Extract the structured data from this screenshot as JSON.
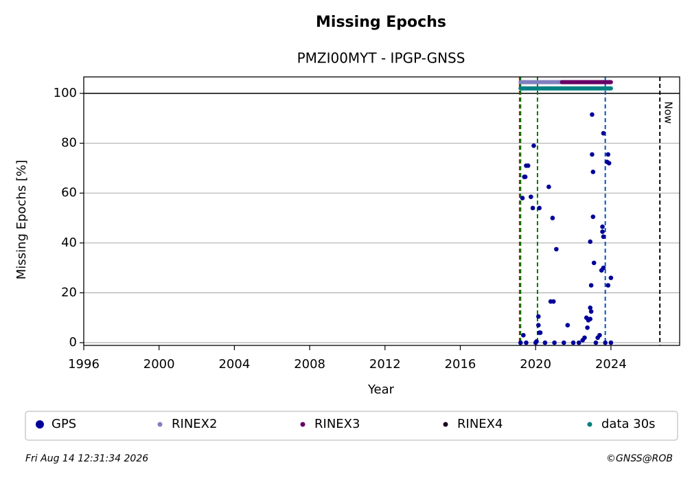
{
  "chart_data": {
    "type": "scatter",
    "title": "Missing Epochs",
    "subtitle": "PMZI00MYT - IPGP-GNSS",
    "x_label": "Year",
    "y_label": "Missing Epochs [%]",
    "xlim": [
      1996,
      2027.65
    ],
    "ylim": [
      -1.1,
      106.6
    ],
    "xticks": [
      1996,
      2000,
      2004,
      2008,
      2012,
      2016,
      2020,
      2024
    ],
    "yticks": [
      0,
      20,
      40,
      60,
      80,
      100
    ],
    "grid": true,
    "reference_line": 100,
    "series": [
      {
        "name": "GPS",
        "color": "#000099",
        "x": [
          2019.2,
          2019.3,
          2019.35,
          2019.4,
          2019.45,
          2019.5,
          2019.6,
          2019.75,
          2019.85,
          2019.9,
          2020.05,
          2020.2,
          2020.15,
          2020.15,
          2020.2,
          2020.25,
          2020.7,
          2020.8,
          2020.95,
          2020.9,
          2021.1,
          2021.7,
          2022.9,
          2022.95,
          2023.0,
          2023.0,
          2023.05,
          2023.05,
          2023.1,
          2022.9,
          2022.95,
          2022.7,
          2022.8,
          2022.9,
          2022.75,
          2023.6,
          2023.55,
          2023.55,
          2023.6,
          2023.5,
          2023.6,
          2023.85,
          2023.8,
          2023.9,
          2023.85,
          2024.0,
          2023.4,
          2023.3,
          2022.6,
          2022.5,
          2019.5,
          2020.0,
          2020.5,
          2021.0,
          2021.5,
          2022.0,
          2022.3,
          2023.2,
          2023.7,
          2024.0
        ],
        "values": [
          0,
          58,
          3,
          66.5,
          66.5,
          71,
          71,
          58.5,
          54,
          79,
          0.5,
          54,
          10.5,
          7,
          4,
          4,
          62.5,
          16.5,
          16.5,
          50,
          37.5,
          7,
          40.5,
          23,
          91.5,
          75.5,
          68.5,
          50.5,
          32,
          14,
          12.5,
          10,
          9,
          9.5,
          6,
          84,
          46.5,
          44.5,
          42.5,
          29,
          30,
          75.5,
          72.5,
          72,
          23,
          26,
          3,
          2,
          2,
          1,
          0,
          0,
          0,
          0,
          0,
          0,
          0,
          0,
          0,
          0
        ]
      },
      {
        "name": "RINEX2",
        "color": "#8080c0",
        "style": "band",
        "x": [
          2019.2,
          2021.4
        ],
        "values": [
          104.5,
          104.5
        ]
      },
      {
        "name": "RINEX3",
        "color": "#660066",
        "style": "band",
        "x": [
          2021.4,
          2024.0
        ],
        "values": [
          104.5,
          104.5
        ]
      },
      {
        "name": "RINEX4",
        "color": "#1a0020",
        "style": "band",
        "x": [],
        "values": []
      },
      {
        "name": "data 30s",
        "color": "#008080",
        "style": "band",
        "x": [
          2019.2,
          2024.0
        ],
        "values": [
          102,
          102
        ]
      }
    ],
    "vlines": [
      {
        "x": 2019.15,
        "color": "#dd0000"
      },
      {
        "x": 2019.2,
        "color": "#007700"
      },
      {
        "x": 2020.1,
        "color": "#007700"
      },
      {
        "x": 2023.7,
        "color": "#0055bb"
      },
      {
        "x": 2026.6,
        "color": "#000000",
        "label": "Now"
      }
    ],
    "footer_left": "Fri Aug 14 12:31:34 2026",
    "footer_right": "©GNSS@ROB"
  }
}
